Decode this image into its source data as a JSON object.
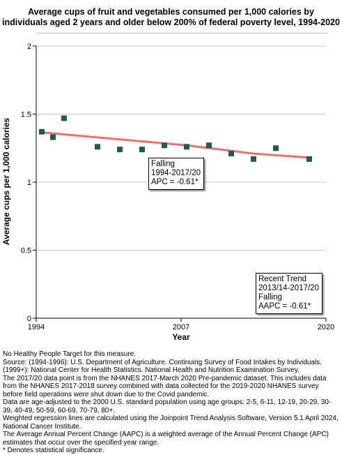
{
  "chart_data": {
    "type": "scatter",
    "title_lines": [
      "Average cups of fruit and vegetables consumed per 1,000 calories by",
      "individuals aged 2 years and older below 200% of federal poverty level, 1994-2020"
    ],
    "xlabel": "Year",
    "ylabel": "Average cups per 1,000 calories",
    "xlim": [
      1994,
      2020
    ],
    "ylim": [
      0,
      2
    ],
    "x_ticks": [
      "1994",
      "2007",
      "2020"
    ],
    "y_ticks": [
      "0",
      "0.5",
      "1",
      "1.5",
      "2"
    ],
    "grid": "horizontal",
    "points": [
      {
        "x": 1994.5,
        "y": 1.37
      },
      {
        "x": 1995.5,
        "y": 1.33
      },
      {
        "x": 1996.5,
        "y": 1.47
      },
      {
        "x": 1999.5,
        "y": 1.26
      },
      {
        "x": 2001.5,
        "y": 1.24
      },
      {
        "x": 2003.5,
        "y": 1.24
      },
      {
        "x": 2005.5,
        "y": 1.27
      },
      {
        "x": 2007.5,
        "y": 1.26
      },
      {
        "x": 2009.5,
        "y": 1.27
      },
      {
        "x": 2011.5,
        "y": 1.21
      },
      {
        "x": 2013.5,
        "y": 1.17
      },
      {
        "x": 2015.5,
        "y": 1.25
      },
      {
        "x": 2018.5,
        "y": 1.17
      }
    ],
    "trend_line": [
      {
        "x": 1994.5,
        "y": 1.365
      },
      {
        "x": 2007.5,
        "y": 1.27
      },
      {
        "x": 2013.5,
        "y": 1.21
      },
      {
        "x": 2018.5,
        "y": 1.18
      }
    ],
    "colors": {
      "marker": "#1e5b54",
      "trend": "#f06e6a",
      "grid": "#c8c8c8",
      "axis": "#000000"
    },
    "annotations": {
      "falling_box": [
        "Falling",
        "1994-2017/20",
        "APC = -0.61*"
      ],
      "recent_trend_box": [
        "Recent Trend",
        "2013/14-2017/20",
        "Falling",
        "AAPC = -0.61*"
      ]
    }
  },
  "notes": [
    "No Healthy People Target for this measure.",
    "Source: (1994-1996): U.S. Department of Agriculture. Continuing Survey of Food Intakes by Individuals. (1999+): National Center for Health Statistics. National Health and Nutrition Examination Survey.",
    "The 2017/20 data point is from the NHANES 2017-March 2020 Pre-pandemic dataset. This includes data from the NHANES 2017-2018 survey combined with data collected for the 2019-2020 NHANES survey before field operations were shut down due to the Covid pandemic.",
    "Data are age-adjusted to the 2000 U.S. standard population using age groups: 2-5, 6-11, 12-19, 20-29, 30-39, 40-49, 50-59, 60-69, 70-79, 80+.",
    "Weighted regression lines are calculated using the Joinpoint Trend Analysis Software, Version 5.1 April 2024, National Cancer Institute.",
    "The Average Annual Percent Change (AAPC) is a weighted average of the Annual Percent Change (APC) estimates that occur over the specified year range.",
    "* Denotes statistical significance."
  ]
}
